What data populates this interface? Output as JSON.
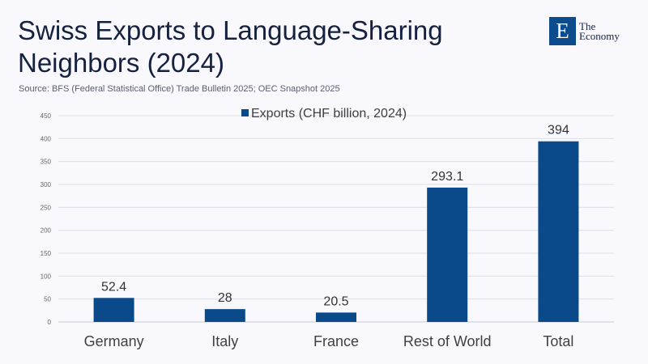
{
  "header": {
    "title": "Swiss Exports to Language-Sharing Neighbors (2024)",
    "source": "Source:  BFS (Federal Statistical Office) Trade Bulletin 2025; OEC Snapshot 2025",
    "logo_letter": "E",
    "logo_text_line1": "The",
    "logo_text_line2": "Economy"
  },
  "colors": {
    "bar": "#0b4a8a",
    "grid": "#dcdfe8"
  },
  "chart_data": {
    "type": "bar",
    "title": "Swiss Exports to Language-Sharing Neighbors (2024)",
    "categories": [
      "Germany",
      "Italy",
      "France",
      "Rest of World",
      "Total"
    ],
    "series": [
      {
        "name": "Exports (CHF billion, 2024)",
        "values": [
          52.4,
          28,
          20.5,
          293.1,
          394
        ]
      }
    ],
    "value_labels": [
      "52.4",
      "28",
      "20.5",
      "293.1",
      "394"
    ],
    "xlabel": "",
    "ylabel": "",
    "ylim": [
      0,
      450
    ],
    "yticks": [
      0,
      50,
      100,
      150,
      200,
      250,
      300,
      350,
      400,
      450
    ],
    "grid": true,
    "legend": "top-center"
  }
}
